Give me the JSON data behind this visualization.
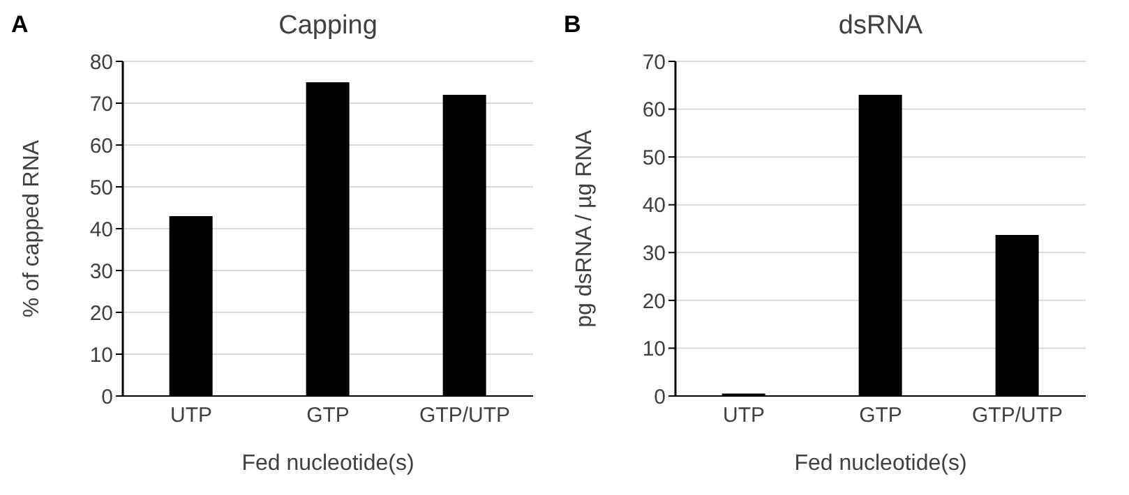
{
  "chart_data": [
    {
      "type": "bar",
      "title": "Capping",
      "annotations": [
        "A"
      ],
      "xlabel": "Fed nucleotide(s)",
      "ylabel": "% of capped RNA",
      "categories": [
        "UTP",
        "GTP",
        "GTP/UTP"
      ],
      "values": [
        43,
        75,
        72
      ],
      "color": "#000000",
      "ylim": [
        0,
        80
      ],
      "yticks": [
        0,
        10,
        20,
        30,
        40,
        50,
        60,
        70,
        80
      ],
      "grid": "y"
    },
    {
      "type": "bar",
      "title": "dsRNA",
      "annotations": [
        "B"
      ],
      "xlabel": "Fed nucleotide(s)",
      "ylabel": "pg dsRNA / µg RNA",
      "categories": [
        "UTP",
        "GTP",
        "GTP/UTP"
      ],
      "values": [
        0.5,
        63,
        33.7
      ],
      "color": "#000000",
      "ylim": [
        0,
        70
      ],
      "yticks": [
        0,
        10,
        20,
        30,
        40,
        50,
        60,
        70
      ],
      "grid": "y"
    }
  ]
}
